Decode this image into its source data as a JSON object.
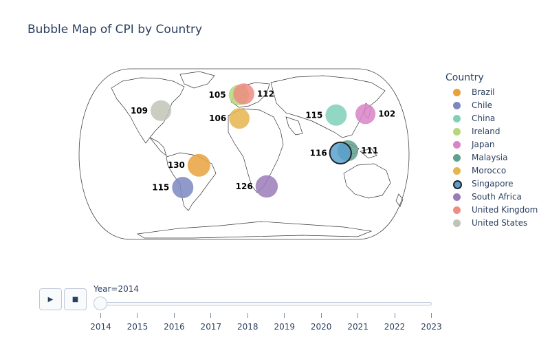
{
  "title": "Bubble Map of CPI by Country",
  "legend": {
    "title": "Country",
    "items": [
      {
        "name": "Brazil",
        "color": "#e8a23c"
      },
      {
        "name": "Chile",
        "color": "#7b88c2"
      },
      {
        "name": "China",
        "color": "#7ed0b8"
      },
      {
        "name": "Ireland",
        "color": "#b3d77a"
      },
      {
        "name": "Japan",
        "color": "#d984c5"
      },
      {
        "name": "Malaysia",
        "color": "#5fa08e"
      },
      {
        "name": "Morocco",
        "color": "#e5b44c"
      },
      {
        "name": "Singapore",
        "color": "#5aa0cf",
        "selected": true
      },
      {
        "name": "South Africa",
        "color": "#9a7bb8"
      },
      {
        "name": "United Kingdom",
        "color": "#ef8c82"
      },
      {
        "name": "United States",
        "color": "#bfc4b7"
      }
    ]
  },
  "chart_data": {
    "type": "scatter",
    "projection": "natural earth",
    "frame_year": 2014,
    "points": [
      {
        "country": "United States",
        "lon": -98,
        "lat": 39,
        "value": 109,
        "color": "#bfc4b7"
      },
      {
        "country": "Ireland",
        "lon": -8,
        "lat": 53,
        "value": 105,
        "color": "#b3d77a"
      },
      {
        "country": "United Kingdom",
        "lon": -2,
        "lat": 54,
        "value": 112,
        "color": "#ef8c82"
      },
      {
        "country": "Morocco",
        "lon": -7,
        "lat": 32,
        "value": 106,
        "color": "#e5b44c"
      },
      {
        "country": "China",
        "lon": 104,
        "lat": 35,
        "value": 115,
        "color": "#7ed0b8"
      },
      {
        "country": "Japan",
        "lon": 138,
        "lat": 36,
        "value": 102,
        "color": "#d984c5"
      },
      {
        "country": "Malaysia",
        "lon": 112,
        "lat": 3,
        "value": 111,
        "color": "#5fa08e"
      },
      {
        "country": "Singapore",
        "lon": 104,
        "lat": 1,
        "value": 116,
        "color": "#5aa0cf",
        "selected": true
      },
      {
        "country": "Brazil",
        "lon": -51,
        "lat": -10,
        "value": 130,
        "color": "#e8a23c"
      },
      {
        "country": "Chile",
        "lon": -71,
        "lat": -30,
        "value": 115,
        "color": "#7b88c2"
      },
      {
        "country": "South Africa",
        "lon": 24,
        "lat": -29,
        "value": 126,
        "color": "#9a7bb8"
      }
    ]
  },
  "controls": {
    "play_icon": "▶",
    "stop_icon": "■",
    "slider_label": "Year=2014",
    "years": [
      "2014",
      "2015",
      "2016",
      "2017",
      "2018",
      "2019",
      "2020",
      "2021",
      "2022",
      "2023"
    ]
  }
}
